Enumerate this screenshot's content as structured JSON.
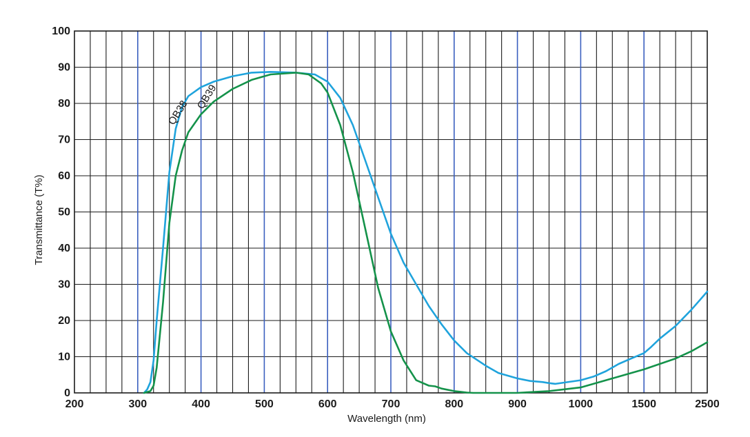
{
  "chart_data": {
    "type": "line",
    "title": "",
    "xlabel": "Wavelength (nm)",
    "ylabel": "Transmittance (T%)",
    "x_ticks": [
      "200",
      "300",
      "400",
      "500",
      "600",
      "700",
      "800",
      "900",
      "1000",
      "1500",
      "2500"
    ],
    "y_ticks": [
      "0",
      "10",
      "20",
      "30",
      "40",
      "50",
      "60",
      "70",
      "80",
      "90",
      "100"
    ],
    "ylim": [
      0,
      100
    ],
    "grid": true,
    "x_scale": "piecewise: 200–1000 nm linear, 1000–1500 nm and 1500–2500 nm each one major division",
    "colors": {
      "QB38": "#1fa3dc",
      "QB39": "#14924a",
      "grid_minor": "#1a1a1a",
      "grid_major": "#3a5fbf"
    },
    "series": [
      {
        "name": "QB38",
        "x": [
          310,
          315,
          320,
          325,
          330,
          340,
          350,
          360,
          370,
          380,
          400,
          420,
          450,
          480,
          510,
          550,
          580,
          600,
          620,
          640,
          660,
          680,
          700,
          720,
          740,
          760,
          780,
          800,
          820,
          850,
          870,
          880,
          900,
          920,
          940,
          950,
          960,
          1000,
          1100,
          1200,
          1300,
          1400,
          1500,
          1600,
          1750,
          2000,
          2250,
          2500
        ],
        "y": [
          0,
          1,
          3,
          9,
          20,
          40,
          61,
          73,
          79,
          82,
          84.5,
          86,
          87.5,
          88.5,
          88.7,
          88.5,
          88,
          86,
          81.5,
          74,
          64,
          54,
          44,
          36,
          30,
          24,
          19,
          14.5,
          11,
          7.5,
          5.5,
          5,
          4,
          3.3,
          3,
          2.7,
          2.5,
          3.5,
          4.5,
          6,
          8,
          9.5,
          11,
          12.5,
          15,
          18.5,
          23,
          28
        ]
      },
      {
        "name": "QB39",
        "x": [
          310,
          320,
          325,
          330,
          340,
          350,
          360,
          370,
          380,
          400,
          420,
          450,
          480,
          510,
          550,
          570,
          590,
          600,
          620,
          640,
          660,
          680,
          700,
          720,
          740,
          760,
          770,
          780,
          800,
          810,
          820,
          830,
          900,
          950,
          1000,
          1100,
          1200,
          1300,
          1400,
          1500,
          1750,
          2000,
          2250,
          2500
        ],
        "y": [
          0,
          0.5,
          2,
          7,
          25,
          47,
          60,
          67,
          72,
          77,
          80.5,
          84,
          86.5,
          88,
          88.5,
          88,
          85.5,
          83,
          74,
          61,
          45,
          29,
          17,
          9,
          3.5,
          2,
          1.8,
          1.2,
          0.5,
          0.3,
          0.1,
          0,
          0,
          0.5,
          1.5,
          2.5,
          3.5,
          4.5,
          5.5,
          6.5,
          8,
          9.5,
          11.5,
          14
        ]
      }
    ]
  }
}
